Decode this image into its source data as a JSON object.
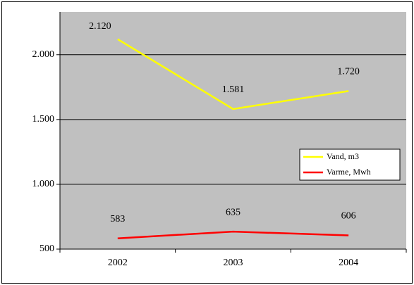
{
  "chart_data": {
    "type": "line",
    "categories": [
      "2002",
      "2003",
      "2004"
    ],
    "series": [
      {
        "name": "Vand, m3",
        "color": "#ffff00",
        "values": [
          2120,
          1581,
          1720
        ],
        "value_labels": [
          "2.120",
          "1.581",
          "1.720"
        ]
      },
      {
        "name": "Varme, Mwh",
        "color": "#ff0000",
        "values": [
          583,
          635,
          606
        ]
      }
    ],
    "ylim": [
      500,
      2330
    ],
    "yticks": [
      500,
      {
        "value": 1000,
        "label": "1.000"
      },
      {
        "value": 1500,
        "label": "1.500"
      },
      {
        "value": 2000,
        "label": "2.000"
      }
    ],
    "grid": true,
    "legend": "right"
  }
}
